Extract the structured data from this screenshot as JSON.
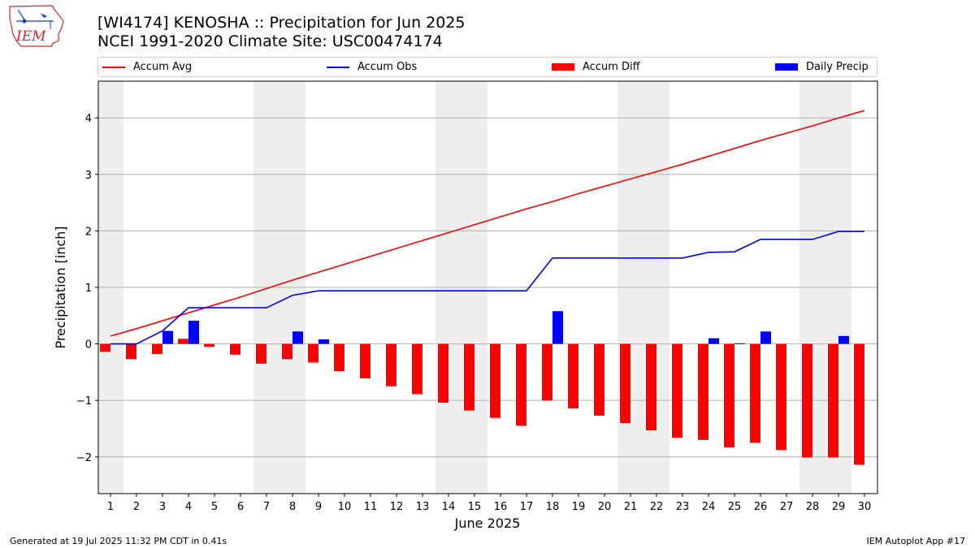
{
  "header": {
    "title_line1": "[WI4174] KENOSHA :: Precipitation for Jun 2025",
    "title_line2": "NCEI 1991-2020 Climate Site: USC00474174"
  },
  "logo": {
    "text": "IEM",
    "color": "#d62728"
  },
  "footer": {
    "left": "Generated at 19 Jul 2025 11:32 PM CDT in 0.41s",
    "right": "IEM Autoplot App #17"
  },
  "colors": {
    "avg": "#ff0000",
    "obs": "#0000ff",
    "diff": "#ff0000",
    "daily": "#0000ff",
    "weekend": "#eeeeee",
    "grid": "#b0b0b0"
  },
  "legend": {
    "accum_avg": "Accum Avg",
    "accum_obs": "Accum Obs",
    "accum_diff": "Accum Diff",
    "daily_precip": "Daily Precip"
  },
  "chart_data": {
    "type": "bar",
    "xlabel": "June 2025",
    "ylabel": "Precipitation [inch]",
    "ylim": [
      -2.65,
      4.65
    ],
    "yticks": [
      -2,
      -1,
      0,
      1,
      2,
      3,
      4
    ],
    "ytick_labels": [
      "−2",
      "−1",
      "0",
      "1",
      "2",
      "3",
      "4"
    ],
    "grid": "horizontal",
    "legend_position": "top",
    "weekend_days": [
      1,
      7,
      8,
      14,
      15,
      21,
      22,
      28,
      29
    ],
    "days": [
      1,
      2,
      3,
      4,
      5,
      6,
      7,
      8,
      9,
      10,
      11,
      12,
      13,
      14,
      15,
      16,
      17,
      18,
      19,
      20,
      21,
      22,
      23,
      24,
      25,
      26,
      27,
      28,
      29,
      30
    ],
    "series": [
      {
        "name": "Accum Avg",
        "kind": "line",
        "values": [
          0.14,
          0.27,
          0.41,
          0.55,
          0.69,
          0.83,
          0.98,
          1.13,
          1.27,
          1.41,
          1.55,
          1.69,
          1.83,
          1.97,
          2.11,
          2.25,
          2.39,
          2.52,
          2.66,
          2.79,
          2.92,
          3.05,
          3.18,
          3.32,
          3.46,
          3.6,
          3.73,
          3.86,
          4.0,
          4.13
        ]
      },
      {
        "name": "Accum Obs",
        "kind": "line",
        "values": [
          0.0,
          0.0,
          0.23,
          0.64,
          0.64,
          0.64,
          0.64,
          0.86,
          0.94,
          0.94,
          0.94,
          0.94,
          0.94,
          0.94,
          0.94,
          0.94,
          0.94,
          1.52,
          1.52,
          1.52,
          1.52,
          1.52,
          1.52,
          1.62,
          1.63,
          1.85,
          1.85,
          1.85,
          1.99,
          1.99
        ]
      },
      {
        "name": "Accum Diff",
        "kind": "bar",
        "values": [
          -0.14,
          -0.27,
          -0.18,
          0.09,
          -0.05,
          -0.19,
          -0.35,
          -0.27,
          -0.33,
          -0.48,
          -0.61,
          -0.75,
          -0.89,
          -1.04,
          -1.18,
          -1.31,
          -1.45,
          -1.0,
          -1.14,
          -1.27,
          -1.4,
          -1.53,
          -1.66,
          -1.7,
          -1.83,
          -1.75,
          -1.88,
          -2.01,
          -2.01,
          -2.14
        ]
      },
      {
        "name": "Daily Precip",
        "kind": "bar",
        "values": [
          0,
          0,
          0.23,
          0.41,
          0,
          0,
          0,
          0.22,
          0.08,
          0,
          0,
          0,
          0,
          0,
          0,
          0,
          0,
          0.58,
          0,
          0,
          0,
          0,
          0,
          0.1,
          0.01,
          0.22,
          0,
          0,
          0.14,
          0
        ]
      }
    ]
  }
}
